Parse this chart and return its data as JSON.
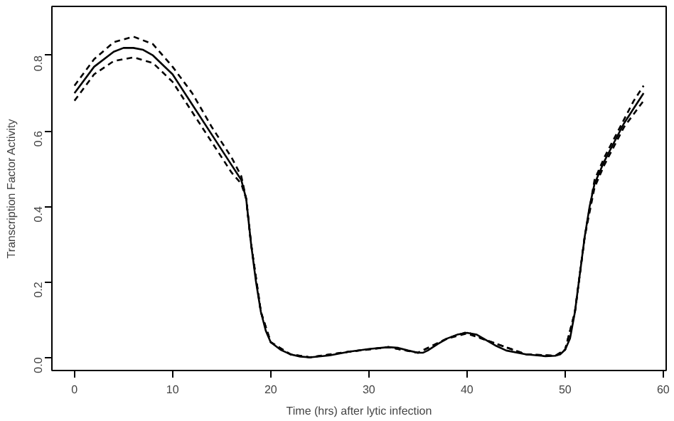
{
  "chart_data": {
    "type": "line",
    "xlabel": "Time (hrs) after lytic infection",
    "ylabel": "Transcription Factor Activity",
    "xlim": [
      -2.3,
      60.3
    ],
    "ylim": [
      -0.035,
      0.93
    ],
    "xticks": [
      0,
      10,
      20,
      30,
      40,
      50,
      60
    ],
    "yticks": [
      {
        "value": 0,
        "label": "0.0"
      },
      0.2,
      0.4,
      0.6,
      0.8
    ],
    "grid": false,
    "series": [
      {
        "color": "#000000",
        "line_style": "solid",
        "x": [
          0,
          2,
          4,
          5,
          6,
          7,
          8,
          10,
          12,
          14,
          16,
          17,
          17.5,
          18,
          18.5,
          19,
          19.5,
          20,
          21,
          22,
          23,
          24,
          26,
          28,
          30,
          32,
          33,
          34,
          35,
          35.5,
          36,
          37,
          38,
          39,
          40,
          41,
          42,
          43,
          44,
          46,
          48,
          49,
          49.5,
          50,
          50.5,
          51,
          51.5,
          52,
          52.5,
          53,
          54,
          55,
          56,
          57,
          58
        ],
        "values": [
          0.7,
          0.77,
          0.81,
          0.82,
          0.82,
          0.815,
          0.8,
          0.75,
          0.67,
          0.59,
          0.51,
          0.47,
          0.42,
          0.3,
          0.2,
          0.12,
          0.07,
          0.04,
          0.02,
          0.008,
          0.002,
          0.0,
          0.005,
          0.015,
          0.022,
          0.027,
          0.025,
          0.018,
          0.012,
          0.012,
          0.018,
          0.035,
          0.05,
          0.06,
          0.065,
          0.06,
          0.045,
          0.03,
          0.018,
          0.008,
          0.003,
          0.004,
          0.008,
          0.02,
          0.05,
          0.12,
          0.22,
          0.32,
          0.4,
          0.46,
          0.52,
          0.57,
          0.62,
          0.66,
          0.7
        ]
      },
      {
        "color": "#000000",
        "line_style": "dashed",
        "x": [
          0,
          2,
          4,
          6,
          8,
          10,
          12,
          14,
          16,
          17,
          17.5,
          18,
          19,
          20,
          22,
          24,
          28,
          32,
          35,
          38,
          40,
          42,
          46,
          49,
          50,
          51,
          52,
          53,
          54,
          55,
          56,
          57,
          58
        ],
        "values": [
          0.72,
          0.79,
          0.835,
          0.85,
          0.83,
          0.77,
          0.7,
          0.61,
          0.53,
          0.48,
          0.42,
          0.3,
          0.12,
          0.04,
          0.008,
          0.0,
          0.015,
          0.027,
          0.012,
          0.05,
          0.067,
          0.045,
          0.008,
          0.004,
          0.02,
          0.12,
          0.32,
          0.47,
          0.53,
          0.58,
          0.63,
          0.68,
          0.72
        ]
      },
      {
        "color": "#000000",
        "line_style": "dashed",
        "x": [
          0,
          2,
          4,
          6,
          8,
          10,
          12,
          14,
          16,
          17,
          17.5,
          18,
          19,
          20,
          22,
          24,
          28,
          32,
          35,
          38,
          40,
          42,
          46,
          49,
          50,
          51,
          52,
          53,
          54,
          55,
          56,
          57,
          58
        ],
        "values": [
          0.68,
          0.75,
          0.785,
          0.795,
          0.78,
          0.73,
          0.65,
          0.57,
          0.49,
          0.46,
          0.42,
          0.3,
          0.12,
          0.04,
          0.008,
          0.0,
          0.015,
          0.027,
          0.012,
          0.05,
          0.063,
          0.045,
          0.008,
          0.004,
          0.02,
          0.12,
          0.32,
          0.45,
          0.51,
          0.56,
          0.61,
          0.645,
          0.68
        ]
      }
    ]
  }
}
